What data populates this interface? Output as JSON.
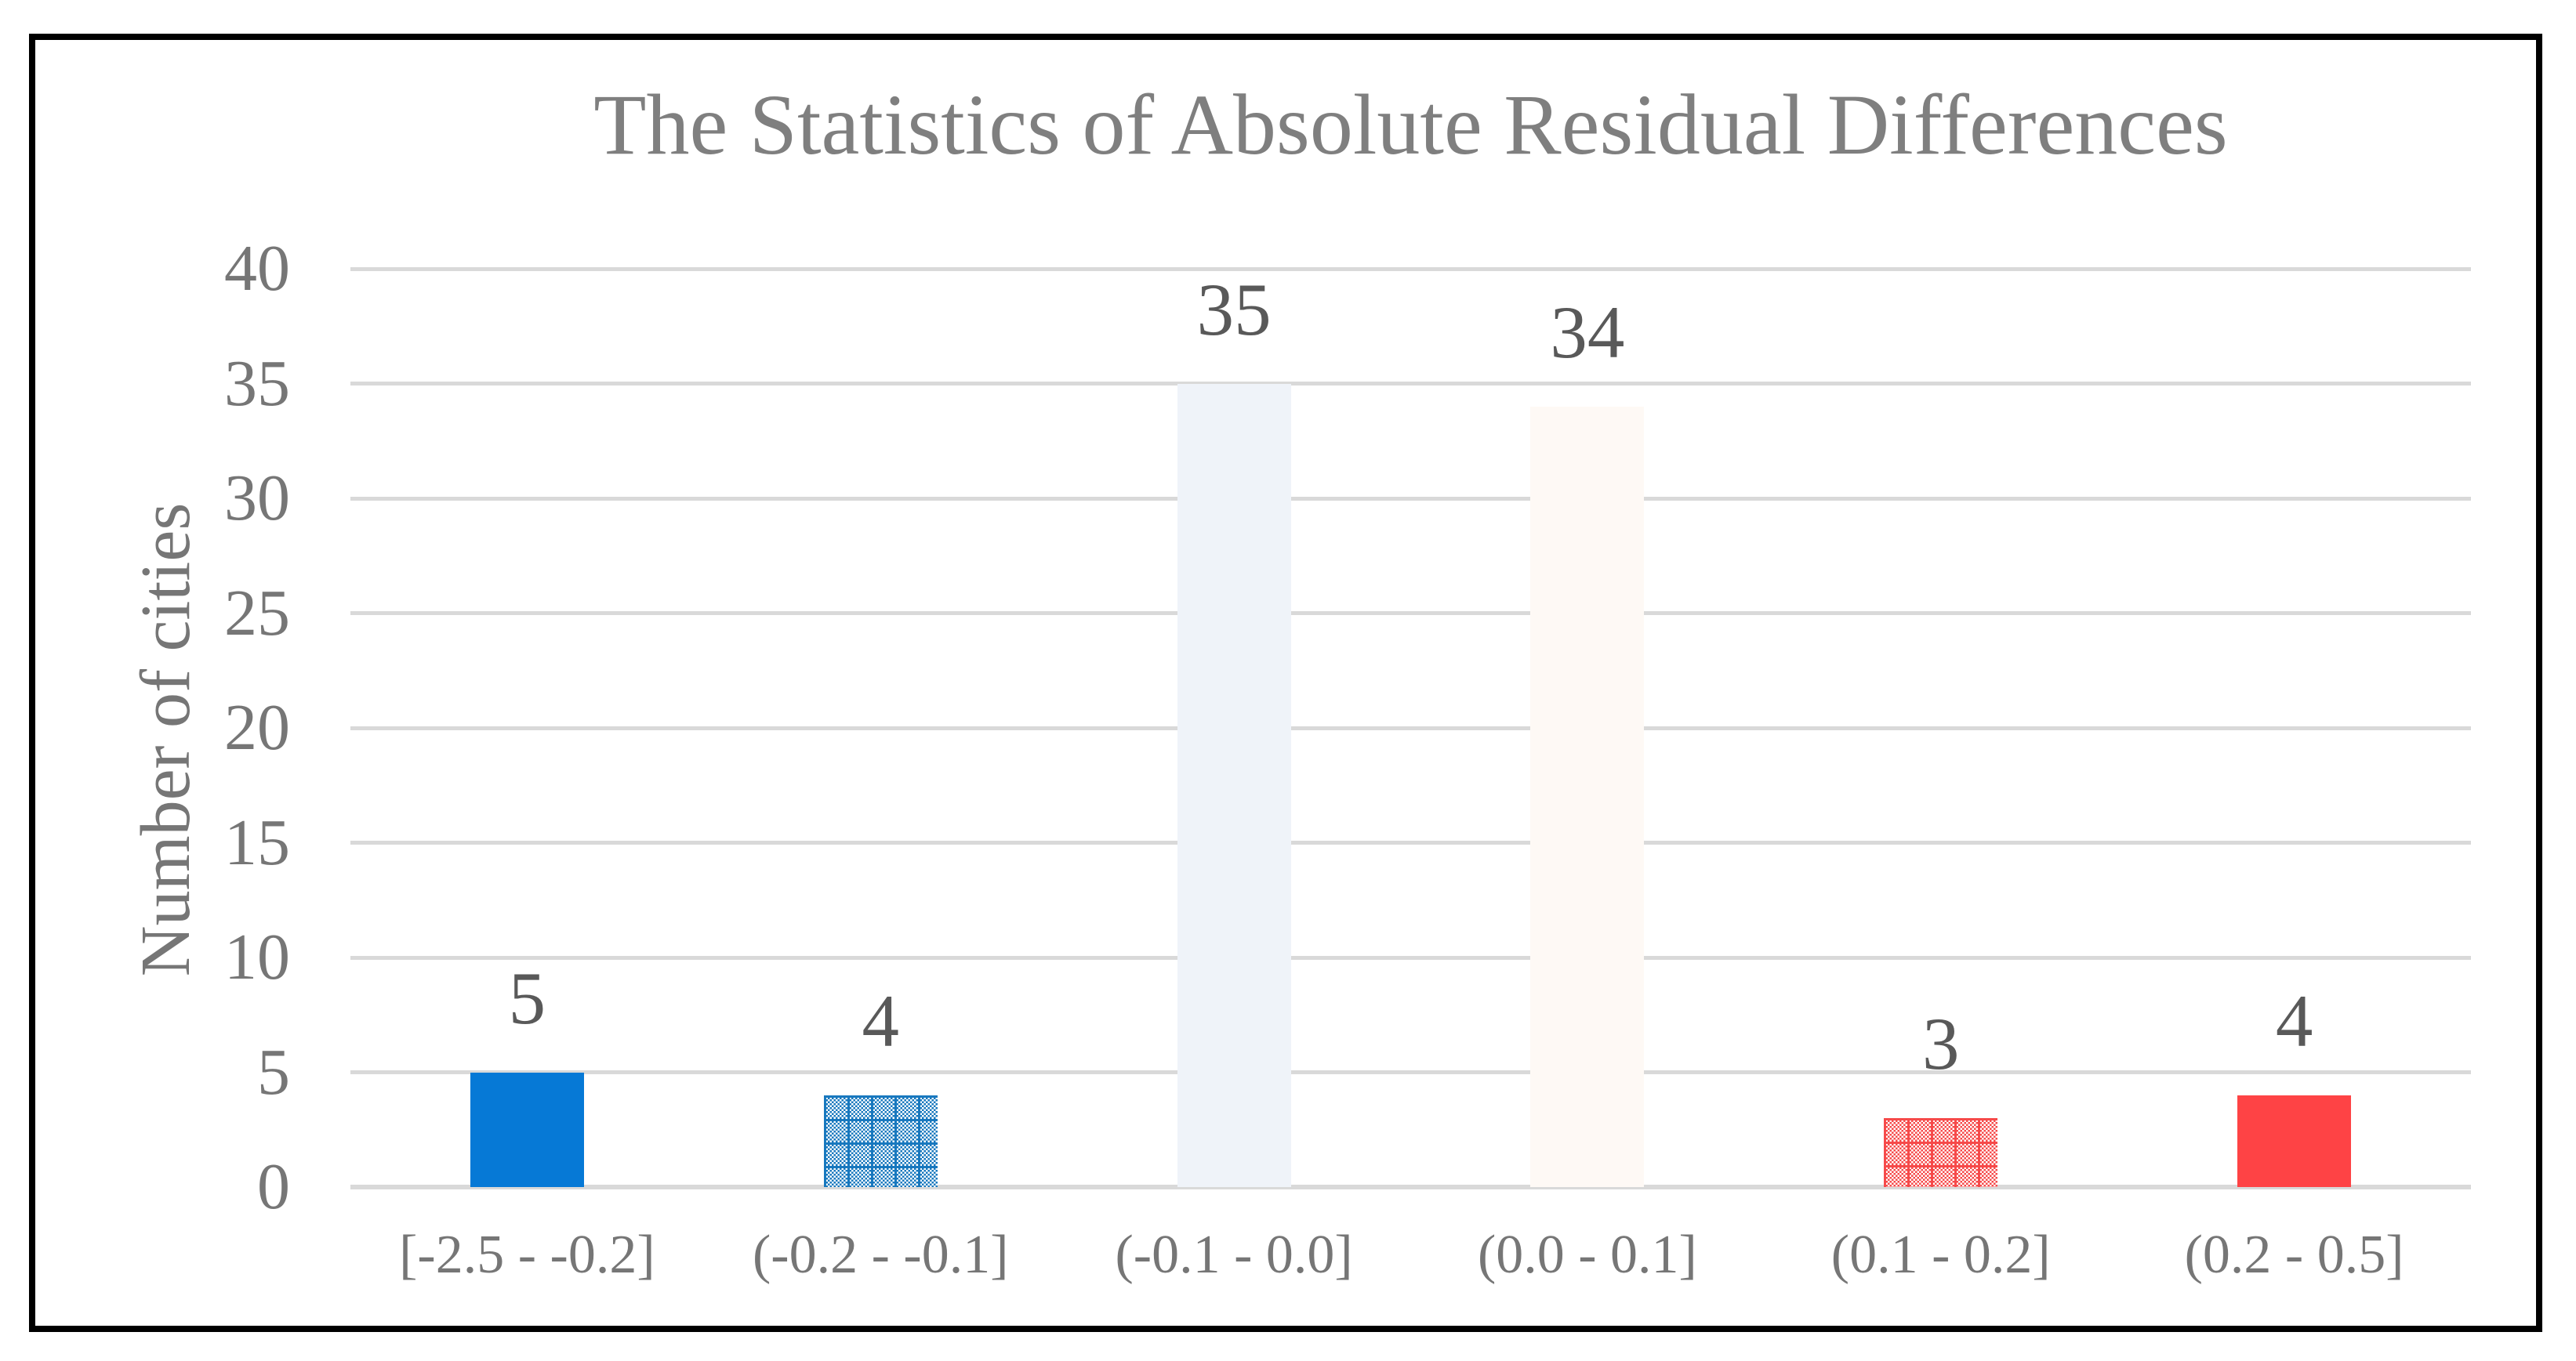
{
  "chart_data": {
    "type": "bar",
    "title": "The Statistics of Absolute Residual Differences",
    "xlabel": "",
    "ylabel": "Number of cities",
    "categories": [
      "[-2.5 - -0.2]",
      "(-0.2 - -0.1]",
      "(-0.1 - 0.0]",
      "(0.0 - 0.1]",
      "(0.1 - 0.2]",
      "(0.2 - 0.5]"
    ],
    "values": [
      5,
      4,
      35,
      34,
      3,
      4
    ],
    "data_labels": [
      "5",
      "4",
      "35",
      "34",
      "3",
      "4"
    ],
    "ylim": [
      0,
      40
    ],
    "yticks": [
      0,
      5,
      10,
      15,
      20,
      25,
      30,
      35,
      40
    ],
    "grid": true,
    "legend_position": "none",
    "bar_styles": [
      {
        "name": "solid-blue",
        "pattern": "solid",
        "color": "#0679d6"
      },
      {
        "name": "checker-blue",
        "pattern": "checker",
        "color": "#1878be"
      },
      {
        "name": "pale-blue",
        "pattern": "solid",
        "color": "#eff3f9"
      },
      {
        "name": "pale-cream",
        "pattern": "solid",
        "color": "#fef9f5"
      },
      {
        "name": "checker-red",
        "pattern": "checker",
        "color": "#f64a4a"
      },
      {
        "name": "solid-red",
        "pattern": "solid",
        "color": "#fe4345"
      }
    ],
    "style_colors": {
      "gridline": "#d9d9d9",
      "title_text": "#7f7f7f",
      "axis_text": "#767676",
      "data_label_text": "#595959",
      "frame_border": "#000000"
    }
  }
}
